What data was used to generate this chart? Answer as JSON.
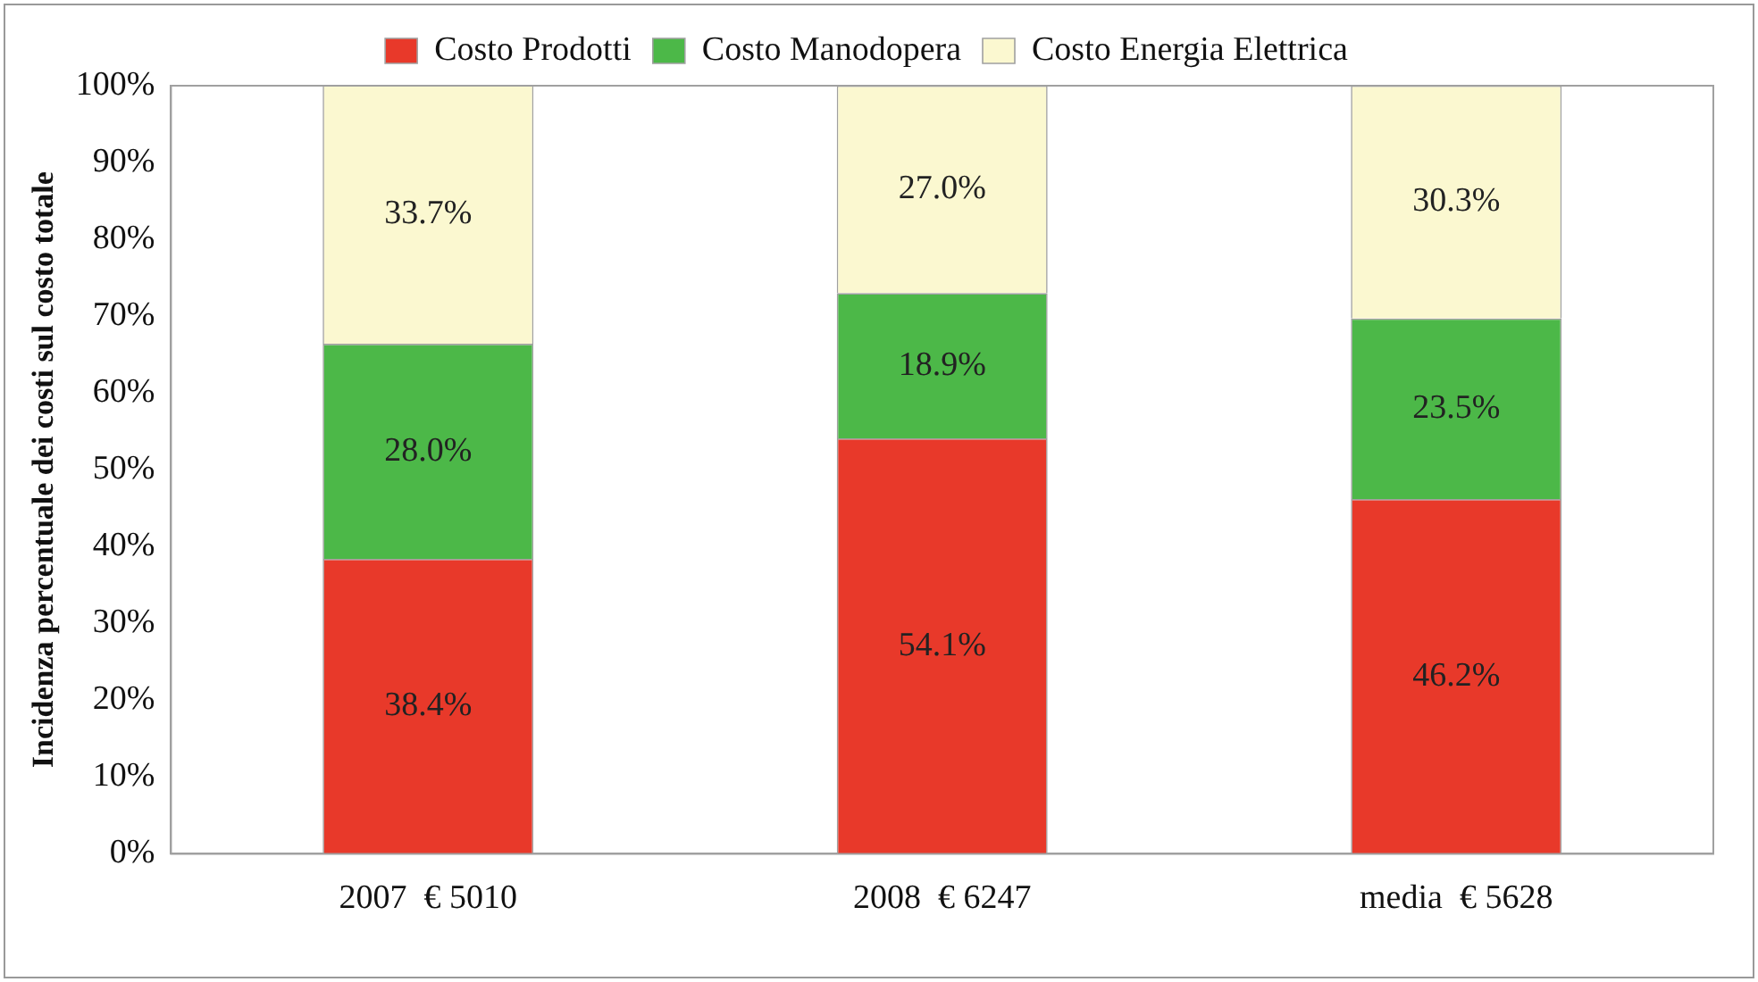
{
  "chart_data": {
    "type": "bar",
    "stacked": true,
    "ylabel": "Incidenza percentuale dei costi sul costo totale",
    "categories": [
      "2007  € 5010",
      "2008  € 6247",
      "media  € 5628"
    ],
    "series": [
      {
        "name": "Costo Prodotti",
        "color": "#e8392a",
        "values": [
          38.4,
          54.1,
          46.2
        ],
        "value_labels": [
          "38.4%",
          "54.1%",
          "46.2%"
        ]
      },
      {
        "name": "Costo Manodopera",
        "color": "#4cb848",
        "values": [
          28.0,
          18.9,
          23.5
        ],
        "value_labels": [
          "28.0%",
          "18.9%",
          "23.5%"
        ]
      },
      {
        "name": "Costo Energia Elettrica",
        "color": "#fbf8d0",
        "values": [
          33.7,
          27.0,
          30.3
        ],
        "value_labels": [
          "33.7%",
          "27.0%",
          "30.3%"
        ]
      }
    ],
    "ylim": [
      0,
      100
    ],
    "yticks": [
      {
        "value": 0,
        "label": "0%"
      },
      {
        "value": 10,
        "label": "10%"
      },
      {
        "value": 20,
        "label": "20%"
      },
      {
        "value": 30,
        "label": "30%"
      },
      {
        "value": 40,
        "label": "40%"
      },
      {
        "value": 50,
        "label": "50%"
      },
      {
        "value": 60,
        "label": "60%"
      },
      {
        "value": 70,
        "label": "70%"
      },
      {
        "value": 80,
        "label": "80%"
      },
      {
        "value": 90,
        "label": "90%"
      },
      {
        "value": 100,
        "label": "100%"
      }
    ],
    "grid": false,
    "legend": "top"
  }
}
